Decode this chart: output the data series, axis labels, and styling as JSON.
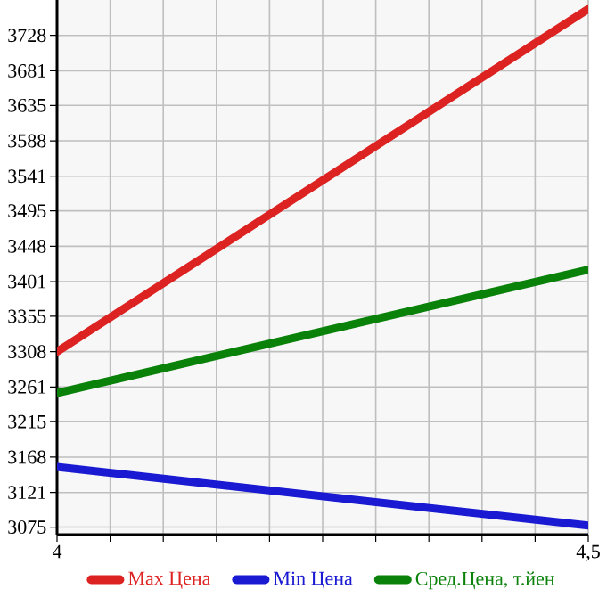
{
  "chart_data": {
    "type": "line",
    "x": [
      4,
      4.5
    ],
    "series": [
      {
        "name": "Max Цена",
        "color": "#dd2222",
        "values": [
          3308,
          3763
        ]
      },
      {
        "name": "Min Цена",
        "color": "#1a1ad2",
        "values": [
          3155,
          3077
        ]
      },
      {
        "name": "Сред.Цена, т.йен",
        "color": "#0a820a",
        "values": [
          3253,
          3417
        ]
      }
    ],
    "xlim": [
      4,
      4.5
    ],
    "xticks": [
      4,
      {
        "value": 4.05,
        "label": null
      },
      {
        "value": 4.1,
        "label": null
      },
      {
        "value": 4.15,
        "label": null
      },
      {
        "value": 4.2,
        "label": null
      },
      {
        "value": 4.25,
        "label": null
      },
      {
        "value": 4.3,
        "label": null
      },
      {
        "value": 4.35,
        "label": null
      },
      {
        "value": 4.4,
        "label": null
      },
      {
        "value": 4.45,
        "label": null
      },
      {
        "value": 4.5,
        "label": "4,5"
      }
    ],
    "ylim": [
      3065,
      3775
    ],
    "yticks": [
      3075,
      3121,
      3168,
      3215,
      3261,
      3308,
      3355,
      3401,
      3448,
      3495,
      3541,
      3588,
      3635,
      3681,
      3728
    ],
    "grid": true,
    "legend": "bottom",
    "marker": "none",
    "line_style": "solid"
  }
}
